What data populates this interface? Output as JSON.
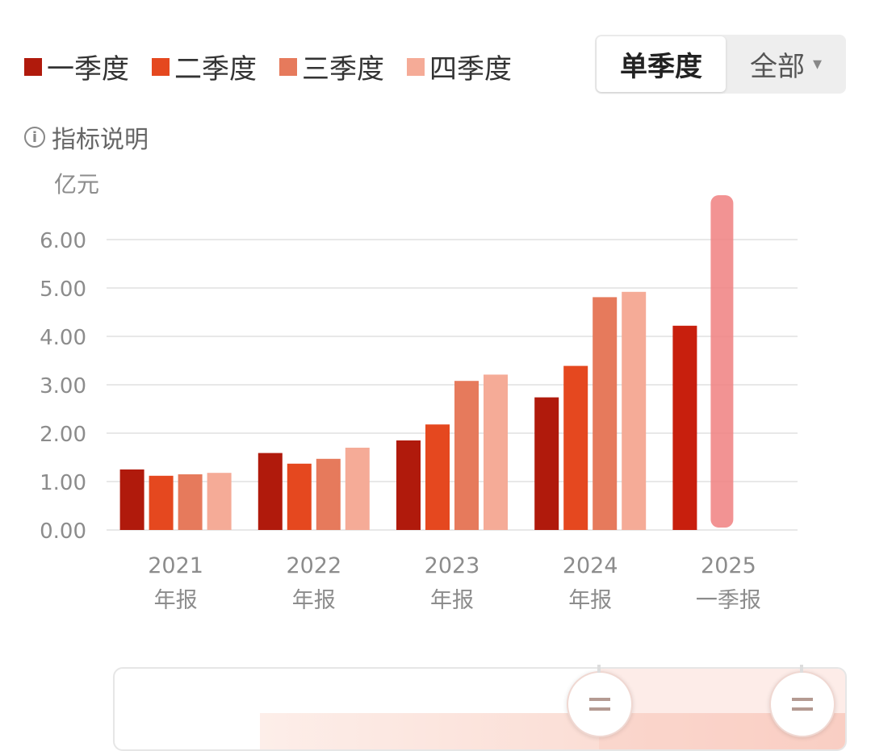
{
  "colors": {
    "q1": "#b01a0c",
    "q2": "#e5481f",
    "q3": "#e67a5c",
    "q4": "#f5ab97",
    "highlight": "#f08080",
    "grid": "#e8e8e8",
    "axis_text": "#8c8c8c"
  },
  "legend": [
    {
      "label": "一季度",
      "color": "#b01a0c"
    },
    {
      "label": "二季度",
      "color": "#e5481f"
    },
    {
      "label": "三季度",
      "color": "#e67a5c"
    },
    {
      "label": "四季度",
      "color": "#f5ab97"
    }
  ],
  "toggle": {
    "single_quarter": "单季度",
    "all": "全部",
    "caret": "▾"
  },
  "info": {
    "icon": "info-icon",
    "label": "指标说明"
  },
  "navigator": {
    "handle_icon": "drag-handle-icon"
  },
  "chart_data": {
    "type": "bar",
    "y_unit": "亿元",
    "ylim": [
      0,
      6
    ],
    "y_ticks": [
      "0.00",
      "1.00",
      "2.00",
      "3.00",
      "4.00",
      "5.00",
      "6.00"
    ],
    "grid": true,
    "legend_position": "top-left",
    "categories": [
      {
        "year": "2021",
        "label": "年报"
      },
      {
        "year": "2022",
        "label": "年报"
      },
      {
        "year": "2023",
        "label": "年报"
      },
      {
        "year": "2024",
        "label": "年报"
      },
      {
        "year": "2025",
        "label": "一季报"
      }
    ],
    "series": [
      {
        "name": "一季度",
        "values": [
          1.25,
          1.59,
          1.85,
          2.74,
          4.22
        ]
      },
      {
        "name": "二季度",
        "values": [
          1.12,
          1.37,
          2.18,
          3.39,
          null
        ]
      },
      {
        "name": "三季度",
        "values": [
          1.15,
          1.47,
          3.08,
          4.81,
          null
        ]
      },
      {
        "name": "四季度",
        "values": [
          1.18,
          1.7,
          3.21,
          4.92,
          null
        ]
      }
    ],
    "highlight_category": 4
  }
}
